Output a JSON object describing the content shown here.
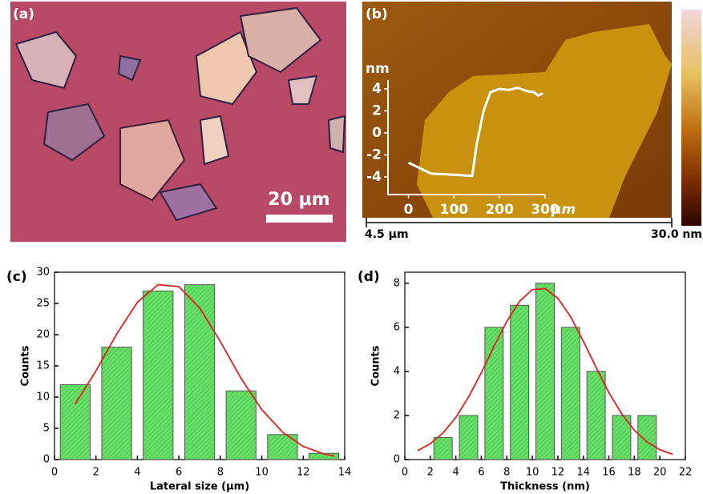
{
  "images": [
    {
      "label": "(a)",
      "scale_bar": "20 µm"
    },
    {
      "label": "(b)",
      "scale_start": "4.5 µm",
      "scale_end": "30.0 nm"
    }
  ],
  "chart_data": [
    {
      "type": "line",
      "ylabel": "nm",
      "xlabel": "μm",
      "x": [
        0,
        50,
        100,
        140,
        150,
        165,
        180,
        200,
        220,
        240,
        260,
        275,
        285,
        295
      ],
      "values": [
        -2.7,
        -3.7,
        -3.8,
        -3.9,
        -1,
        2,
        3.7,
        4,
        3.9,
        4.1,
        3.8,
        3.7,
        3.4,
        3.6
      ],
      "color": "#ffffff",
      "xlim": [
        -45,
        300
      ],
      "ylim": [
        -5.6,
        4.8
      ],
      "xticks": [
        0,
        100,
        200,
        300
      ],
      "yticks": [
        -4,
        -2,
        0,
        2,
        4
      ]
    },
    {
      "type": "histogram",
      "label": "(c)",
      "xlabel": "Lateral size (µm)",
      "ylabel": "Counts",
      "bins": [
        0,
        2,
        4,
        6,
        8,
        10,
        12,
        14
      ],
      "values": [
        12,
        18,
        27,
        28,
        11,
        4,
        1
      ],
      "color": "#66e066",
      "fit_x": [
        1,
        2,
        3,
        4,
        5,
        6,
        7,
        8,
        9,
        10,
        11,
        12,
        13,
        13.5
      ],
      "fit_values": [
        8.9,
        14.2,
        20.1,
        25.2,
        28.0,
        27.7,
        24.3,
        18.9,
        13.0,
        8.0,
        4.4,
        2.1,
        0.9,
        0.56
      ],
      "fit_color": "#e02020",
      "xlim": [
        0,
        14
      ],
      "ylim": [
        0,
        30
      ],
      "xticks": [
        0,
        2,
        4,
        6,
        8,
        10,
        12,
        14
      ],
      "yticks": [
        0,
        5,
        10,
        15,
        20,
        25,
        30
      ]
    },
    {
      "type": "histogram",
      "label": "(d)",
      "xlabel": "Thickness (nm)",
      "ylabel": "Counts",
      "bins": [
        2,
        4,
        6,
        8,
        10,
        12,
        14,
        16,
        18,
        20
      ],
      "values": [
        1,
        2,
        6,
        7,
        8,
        6,
        4,
        2,
        2
      ],
      "color": "#66e066",
      "fit_x": [
        1,
        2,
        3,
        4,
        5,
        6,
        7,
        8,
        9,
        10,
        11,
        12,
        13,
        14,
        15,
        16,
        17,
        18,
        19,
        20,
        21
      ],
      "fit_values": [
        0.4,
        0.72,
        1.21,
        1.91,
        2.84,
        3.94,
        5.14,
        6.27,
        7.18,
        7.71,
        7.76,
        7.32,
        6.48,
        5.37,
        4.18,
        3.04,
        2.08,
        1.33,
        0.8,
        0.45,
        0.24
      ],
      "fit_color": "#e02020",
      "xlim": [
        0,
        22
      ],
      "ylim": [
        0,
        8.5
      ],
      "xticks": [
        0,
        2,
        4,
        6,
        8,
        10,
        12,
        14,
        16,
        18,
        20,
        22
      ],
      "yticks": [
        0,
        2,
        4,
        6,
        8
      ]
    }
  ]
}
